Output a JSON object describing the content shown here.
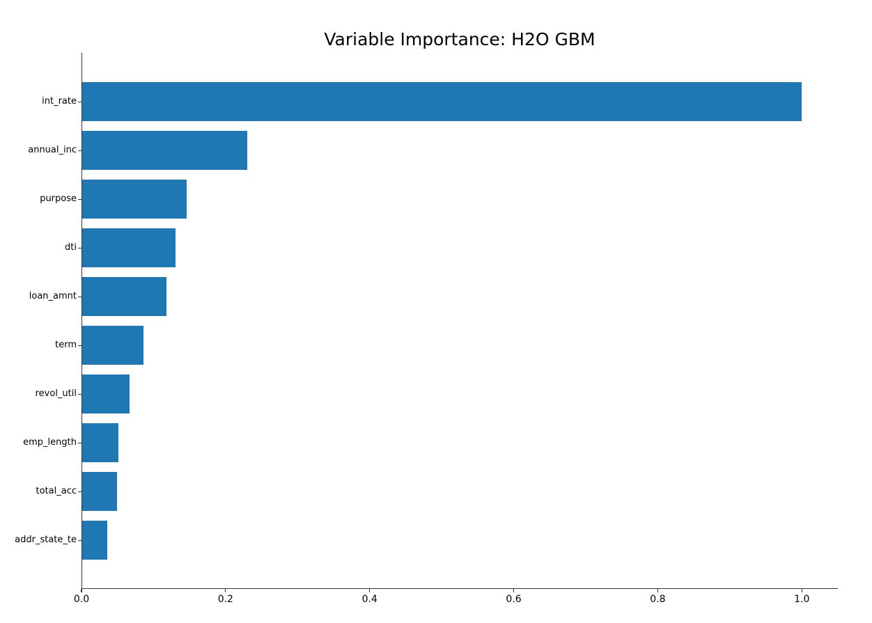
{
  "chart_data": {
    "type": "bar",
    "orientation": "horizontal",
    "title": "Variable Importance: H2O GBM",
    "categories": [
      "int_rate",
      "annual_inc",
      "purpose",
      "dti",
      "loan_amnt",
      "term",
      "revol_util",
      "emp_length",
      "total_acc",
      "addr_state_te"
    ],
    "values": [
      1.0,
      0.229,
      0.145,
      0.13,
      0.117,
      0.085,
      0.066,
      0.05,
      0.048,
      0.035
    ],
    "xlabel": "",
    "ylabel": "",
    "xlim": [
      0,
      1.05
    ],
    "xticks": [
      0.0,
      0.2,
      0.4,
      0.6,
      0.8,
      1.0
    ],
    "xtick_labels": [
      "0.0",
      "0.2",
      "0.4",
      "0.6",
      "0.8",
      "1.0"
    ],
    "bar_color": "#1f77b4",
    "grid": false,
    "legend_position": "none"
  }
}
